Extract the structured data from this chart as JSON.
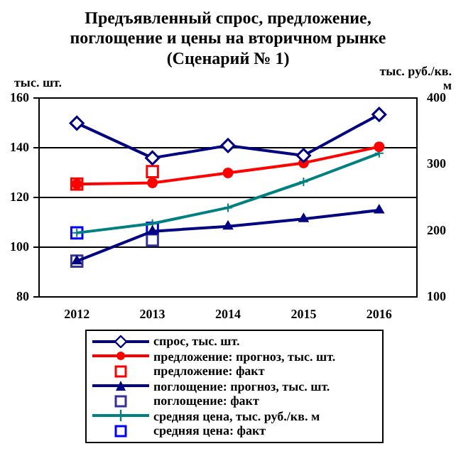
{
  "chart_data": {
    "type": "line",
    "title": [
      "Предъявленный спрос, предложение,",
      "поглощение и цены на вторичном рынке",
      "(Сценарий № 1)"
    ],
    "ylabel": "тыс. шт.",
    "y2label": [
      "тыс. руб./кв.",
      "м"
    ],
    "categories": [
      "2012",
      "2013",
      "2014",
      "2015",
      "2016"
    ],
    "series": [
      {
        "name": "спрос, тыс. шт.",
        "color": "#000080",
        "marker": "diamond",
        "values": [
          150,
          136,
          141,
          137,
          153.5
        ]
      },
      {
        "name": "предложение: прогноз, тыс. шт.",
        "color": "#ff0000",
        "marker": "circle",
        "values": [
          125.5,
          126,
          130,
          134,
          140.5
        ]
      },
      {
        "name": "предложение: факт",
        "color": "#ff0000",
        "type": "scatter",
        "marker": "square",
        "values": [
          125.5,
          130.5,
          null,
          null,
          null
        ]
      },
      {
        "name": "поглощение: прогноз, тыс. шт.",
        "color": "#000080",
        "marker": "triangle",
        "values": [
          94.5,
          106.5,
          108.5,
          111.5,
          115
        ]
      },
      {
        "name": "поглощение: факт",
        "color": "#333399",
        "type": "scatter",
        "marker": "square",
        "values": [
          94.5,
          103,
          null,
          null,
          null
        ]
      },
      {
        "name": "средняя цена, тыс. руб./кв. м",
        "color": "#008080",
        "marker": "cross",
        "axis": "y2",
        "values": [
          197,
          211,
          235,
          274,
          317
        ]
      },
      {
        "name": "средняя цена: факт",
        "color": "#0000ff",
        "type": "scatter",
        "marker": "square",
        "axis": "y2",
        "values": [
          197,
          204,
          null,
          null,
          null
        ]
      }
    ],
    "ylim": [
      80,
      160
    ],
    "yticks": [
      80,
      100,
      120,
      140,
      160
    ],
    "y2lim": [
      100,
      400
    ],
    "y2ticks": [
      100,
      200,
      300,
      400
    ],
    "grid": "y",
    "legend": "bottom"
  }
}
